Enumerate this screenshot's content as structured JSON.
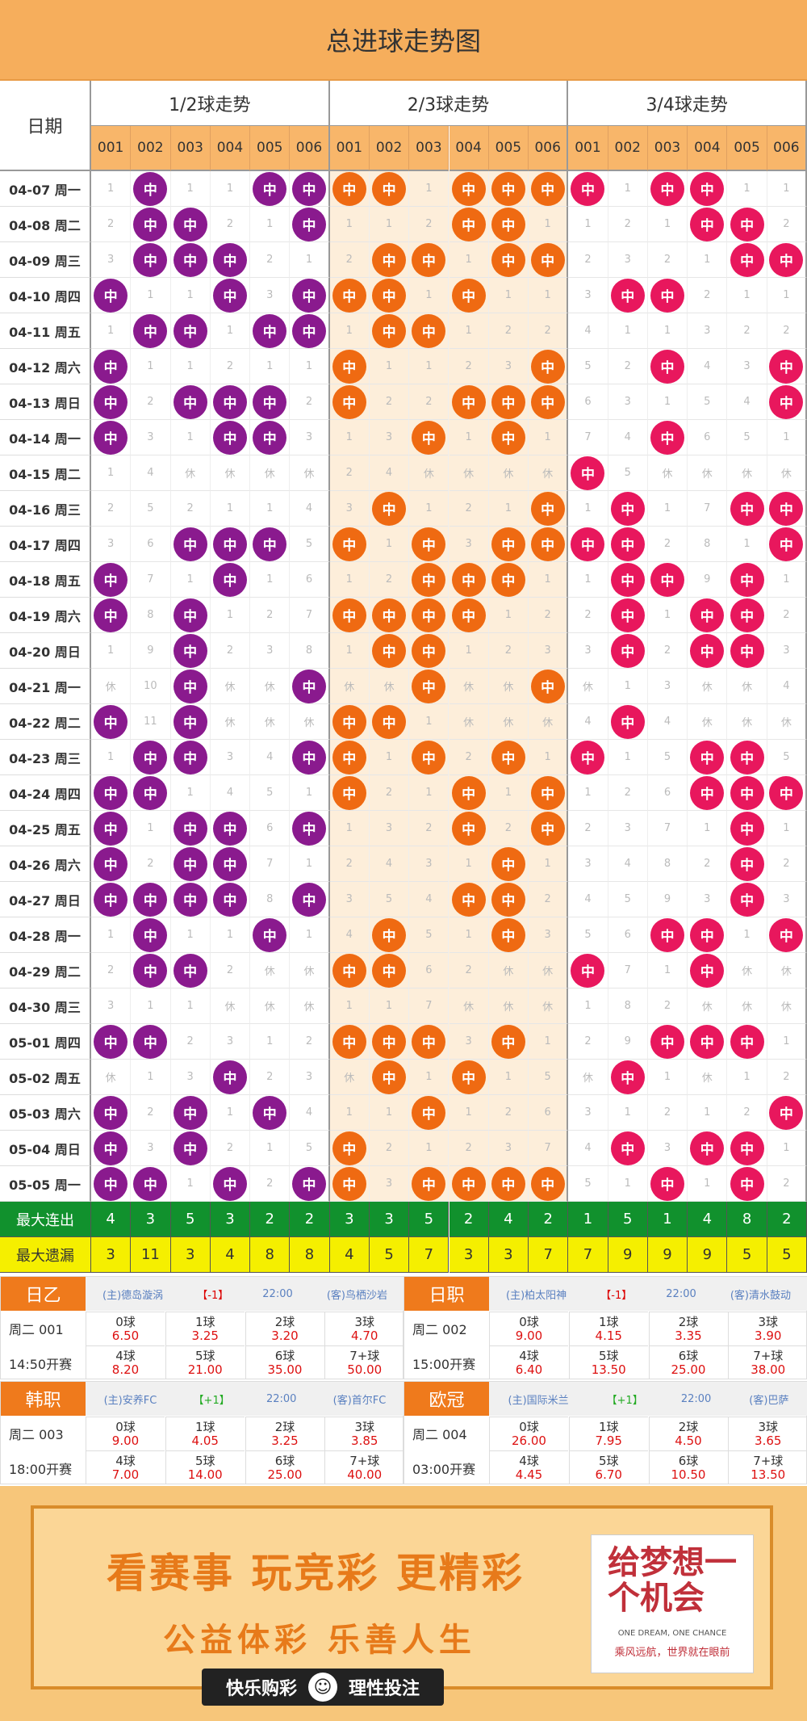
{
  "title": "总进球走势图",
  "header": {
    "date_label": "日期",
    "groups": [
      "1/2球走势",
      "2/3球走势",
      "3/4球走势"
    ],
    "cols": [
      "001",
      "002",
      "003",
      "004",
      "005",
      "006"
    ]
  },
  "ball_label": "中",
  "colors": {
    "g1": "#8a1a8e",
    "g2": "#ef6a12",
    "g3": "#e8175d"
  },
  "rows": [
    {
      "date": "04-07 周一",
      "c": [
        "1",
        "中",
        "1",
        "1",
        "中",
        "中",
        "中",
        "中",
        "1",
        "中",
        "中",
        "中",
        "中",
        "1",
        "中",
        "中",
        "1",
        "1"
      ]
    },
    {
      "date": "04-08 周二",
      "c": [
        "2",
        "中",
        "中",
        "2",
        "1",
        "中",
        "1",
        "1",
        "2",
        "中",
        "中",
        "1",
        "1",
        "2",
        "1",
        "中",
        "中",
        "2"
      ]
    },
    {
      "date": "04-09 周三",
      "c": [
        "3",
        "中",
        "中",
        "中",
        "2",
        "1",
        "2",
        "中",
        "中",
        "1",
        "中",
        "中",
        "2",
        "3",
        "2",
        "1",
        "中",
        "中"
      ]
    },
    {
      "date": "04-10 周四",
      "c": [
        "中",
        "1",
        "1",
        "中",
        "3",
        "中",
        "中",
        "中",
        "1",
        "中",
        "1",
        "1",
        "3",
        "中",
        "中",
        "2",
        "1",
        "1"
      ]
    },
    {
      "date": "04-11 周五",
      "c": [
        "1",
        "中",
        "中",
        "1",
        "中",
        "中",
        "1",
        "中",
        "中",
        "1",
        "2",
        "2",
        "4",
        "1",
        "1",
        "3",
        "2",
        "2"
      ]
    },
    {
      "date": "04-12 周六",
      "c": [
        "中",
        "1",
        "1",
        "2",
        "1",
        "1",
        "中",
        "1",
        "1",
        "2",
        "3",
        "中",
        "5",
        "2",
        "中",
        "4",
        "3",
        "中"
      ]
    },
    {
      "date": "04-13 周日",
      "c": [
        "中",
        "2",
        "中",
        "中",
        "中",
        "2",
        "中",
        "2",
        "2",
        "中",
        "中",
        "中",
        "6",
        "3",
        "1",
        "5",
        "4",
        "中"
      ]
    },
    {
      "date": "04-14 周一",
      "c": [
        "中",
        "3",
        "1",
        "中",
        "中",
        "3",
        "1",
        "3",
        "中",
        "1",
        "中",
        "1",
        "7",
        "4",
        "中",
        "6",
        "5",
        "1"
      ]
    },
    {
      "date": "04-15 周二",
      "c": [
        "1",
        "4",
        "休",
        "休",
        "休",
        "休",
        "2",
        "4",
        "休",
        "休",
        "休",
        "休",
        "中",
        "5",
        "休",
        "休",
        "休",
        "休"
      ]
    },
    {
      "date": "04-16 周三",
      "c": [
        "2",
        "5",
        "2",
        "1",
        "1",
        "4",
        "3",
        "中",
        "1",
        "2",
        "1",
        "中",
        "1",
        "中",
        "1",
        "7",
        "中",
        "中"
      ]
    },
    {
      "date": "04-17 周四",
      "c": [
        "3",
        "6",
        "中",
        "中",
        "中",
        "5",
        "中",
        "1",
        "中",
        "3",
        "中",
        "中",
        "中",
        "中",
        "2",
        "8",
        "1",
        "中"
      ]
    },
    {
      "date": "04-18 周五",
      "c": [
        "中",
        "7",
        "1",
        "中",
        "1",
        "6",
        "1",
        "2",
        "中",
        "中",
        "中",
        "1",
        "1",
        "中",
        "中",
        "9",
        "中",
        "1"
      ]
    },
    {
      "date": "04-19 周六",
      "c": [
        "中",
        "8",
        "中",
        "1",
        "2",
        "7",
        "中",
        "中",
        "中",
        "中",
        "1",
        "2",
        "2",
        "中",
        "1",
        "中",
        "中",
        "2"
      ]
    },
    {
      "date": "04-20 周日",
      "c": [
        "1",
        "9",
        "中",
        "2",
        "3",
        "8",
        "1",
        "中",
        "中",
        "1",
        "2",
        "3",
        "3",
        "中",
        "2",
        "中",
        "中",
        "3"
      ]
    },
    {
      "date": "04-21 周一",
      "c": [
        "休",
        "10",
        "中",
        "休",
        "休",
        "中",
        "休",
        "休",
        "中",
        "休",
        "休",
        "中",
        "休",
        "1",
        "3",
        "休",
        "休",
        "4"
      ]
    },
    {
      "date": "04-22 周二",
      "c": [
        "中",
        "11",
        "中",
        "休",
        "休",
        "休",
        "中",
        "中",
        "1",
        "休",
        "休",
        "休",
        "4",
        "中",
        "4",
        "休",
        "休",
        "休"
      ]
    },
    {
      "date": "04-23 周三",
      "c": [
        "1",
        "中",
        "中",
        "3",
        "4",
        "中",
        "中",
        "1",
        "中",
        "2",
        "中",
        "1",
        "中",
        "1",
        "5",
        "中",
        "中",
        "5"
      ]
    },
    {
      "date": "04-24 周四",
      "c": [
        "中",
        "中",
        "1",
        "4",
        "5",
        "1",
        "中",
        "2",
        "1",
        "中",
        "1",
        "中",
        "1",
        "2",
        "6",
        "中",
        "中",
        "中"
      ]
    },
    {
      "date": "04-25 周五",
      "c": [
        "中",
        "1",
        "中",
        "中",
        "6",
        "中",
        "1",
        "3",
        "2",
        "中",
        "2",
        "中",
        "2",
        "3",
        "7",
        "1",
        "中",
        "1"
      ]
    },
    {
      "date": "04-26 周六",
      "c": [
        "中",
        "2",
        "中",
        "中",
        "7",
        "1",
        "2",
        "4",
        "3",
        "1",
        "中",
        "1",
        "3",
        "4",
        "8",
        "2",
        "中",
        "2"
      ]
    },
    {
      "date": "04-27 周日",
      "c": [
        "中",
        "中",
        "中",
        "中",
        "8",
        "中",
        "3",
        "5",
        "4",
        "中",
        "中",
        "2",
        "4",
        "5",
        "9",
        "3",
        "中",
        "3"
      ]
    },
    {
      "date": "04-28 周一",
      "c": [
        "1",
        "中",
        "1",
        "1",
        "中",
        "1",
        "4",
        "中",
        "5",
        "1",
        "中",
        "3",
        "5",
        "6",
        "中",
        "中",
        "1",
        "中"
      ]
    },
    {
      "date": "04-29 周二",
      "c": [
        "2",
        "中",
        "中",
        "2",
        "休",
        "休",
        "中",
        "中",
        "6",
        "2",
        "休",
        "休",
        "中",
        "7",
        "1",
        "中",
        "休",
        "休"
      ]
    },
    {
      "date": "04-30 周三",
      "c": [
        "3",
        "1",
        "1",
        "休",
        "休",
        "休",
        "1",
        "1",
        "7",
        "休",
        "休",
        "休",
        "1",
        "8",
        "2",
        "休",
        "休",
        "休"
      ]
    },
    {
      "date": "05-01 周四",
      "c": [
        "中",
        "中",
        "2",
        "3",
        "1",
        "2",
        "中",
        "中",
        "中",
        "3",
        "中",
        "1",
        "2",
        "9",
        "中",
        "中",
        "中",
        "1"
      ]
    },
    {
      "date": "05-02 周五",
      "c": [
        "休",
        "1",
        "3",
        "中",
        "2",
        "3",
        "休",
        "中",
        "1",
        "中",
        "1",
        "5",
        "休",
        "中",
        "1",
        "休",
        "1",
        "2"
      ]
    },
    {
      "date": "05-03 周六",
      "c": [
        "中",
        "2",
        "中",
        "1",
        "中",
        "4",
        "1",
        "1",
        "中",
        "1",
        "2",
        "6",
        "3",
        "1",
        "2",
        "1",
        "2",
        "中"
      ]
    },
    {
      "date": "05-04 周日",
      "c": [
        "中",
        "3",
        "中",
        "2",
        "1",
        "5",
        "中",
        "2",
        "1",
        "2",
        "3",
        "7",
        "4",
        "中",
        "3",
        "中",
        "中",
        "1"
      ]
    },
    {
      "date": "05-05 周一",
      "c": [
        "中",
        "中",
        "1",
        "中",
        "2",
        "中",
        "中",
        "3",
        "中",
        "中",
        "中",
        "中",
        "5",
        "1",
        "中",
        "1",
        "中",
        "2"
      ]
    }
  ],
  "stats": {
    "max_streak_label": "最大连出",
    "max_streak": [
      "4",
      "3",
      "5",
      "3",
      "2",
      "2",
      "3",
      "3",
      "5",
      "2",
      "4",
      "2",
      "1",
      "5",
      "1",
      "4",
      "8",
      "2"
    ],
    "max_miss_label": "最大遗漏",
    "max_miss": [
      "3",
      "11",
      "3",
      "4",
      "8",
      "8",
      "4",
      "5",
      "7",
      "3",
      "3",
      "7",
      "7",
      "9",
      "9",
      "9",
      "5",
      "5"
    ]
  },
  "matches": [
    {
      "league": "日乙",
      "home": "(主)德岛漩涡",
      "hc": "【-1】",
      "time": "22:00",
      "away": "(客)鸟栖沙岩",
      "no": "周二 001",
      "start": "14:50开赛",
      "odds": [
        [
          "0球",
          "6.50"
        ],
        [
          "1球",
          "3.25"
        ],
        [
          "2球",
          "3.20"
        ],
        [
          "3球",
          "4.70"
        ],
        [
          "4球",
          "8.20"
        ],
        [
          "5球",
          "21.00"
        ],
        [
          "6球",
          "35.00"
        ],
        [
          "7+球",
          "50.00"
        ]
      ]
    },
    {
      "league": "日职",
      "home": "(主)柏太阳神",
      "hc": "【-1】",
      "time": "22:00",
      "away": "(客)清水鼓动",
      "no": "周二 002",
      "start": "15:00开赛",
      "odds": [
        [
          "0球",
          "9.00"
        ],
        [
          "1球",
          "4.15"
        ],
        [
          "2球",
          "3.35"
        ],
        [
          "3球",
          "3.90"
        ],
        [
          "4球",
          "6.40"
        ],
        [
          "5球",
          "13.50"
        ],
        [
          "6球",
          "25.00"
        ],
        [
          "7+球",
          "38.00"
        ]
      ]
    },
    {
      "league": "韩职",
      "home": "(主)安养FC",
      "hc": "【+1】",
      "time": "22:00",
      "away": "(客)首尔FC",
      "no": "周二 003",
      "start": "18:00开赛",
      "odds": [
        [
          "0球",
          "9.00"
        ],
        [
          "1球",
          "4.05"
        ],
        [
          "2球",
          "3.25"
        ],
        [
          "3球",
          "3.85"
        ],
        [
          "4球",
          "7.00"
        ],
        [
          "5球",
          "14.00"
        ],
        [
          "6球",
          "25.00"
        ],
        [
          "7+球",
          "40.00"
        ]
      ]
    },
    {
      "league": "欧冠",
      "home": "(主)国际米兰",
      "hc": "【+1】",
      "time": "22:00",
      "away": "(客)巴萨",
      "no": "周二 004",
      "start": "03:00开赛",
      "odds": [
        [
          "0球",
          "26.00"
        ],
        [
          "1球",
          "7.95"
        ],
        [
          "2球",
          "4.50"
        ],
        [
          "3球",
          "3.65"
        ],
        [
          "4球",
          "4.45"
        ],
        [
          "5球",
          "6.70"
        ],
        [
          "6球",
          "10.50"
        ],
        [
          "7+球",
          "13.50"
        ]
      ]
    }
  ],
  "banner": {
    "slogan1": "看赛事 玩竞彩 更精彩",
    "slogan2": "公益体彩 乐善人生",
    "dream_big": "给梦想一个机会",
    "dream_en": "ONE DREAM, ONE CHANCE",
    "dream_cn": "乘风远航，世界就在眼前",
    "footer_left": "快乐购彩",
    "footer_right": "理性投注"
  }
}
